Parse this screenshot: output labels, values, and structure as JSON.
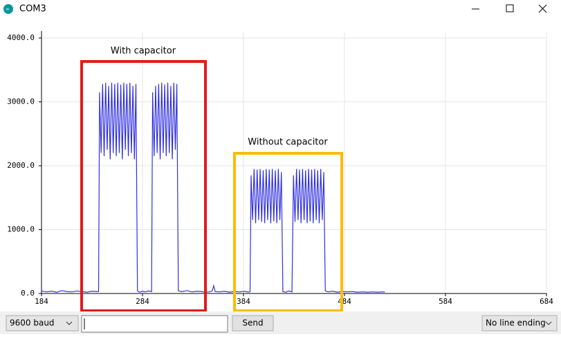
{
  "window": {
    "title": "COM3"
  },
  "chart_data": {
    "type": "line",
    "xlim": [
      184,
      684
    ],
    "xticks": [
      184,
      284,
      384,
      484,
      584,
      684
    ],
    "ylim": [
      0,
      4000
    ],
    "yticks": [
      {
        "value": 0,
        "label": "0.0"
      },
      {
        "value": 1000,
        "label": "1000.0"
      },
      {
        "value": 2000,
        "label": "2000.0"
      },
      {
        "value": 3000,
        "label": "3000.0"
      },
      {
        "value": 4000,
        "label": "4000.0"
      }
    ],
    "grid": true,
    "color": "#2f2fe0",
    "annotations": [
      "With capacitor",
      "Without capacitor"
    ],
    "x": [
      184,
      189,
      194,
      199,
      204,
      209,
      214,
      219,
      224,
      229,
      234,
      239,
      240.5,
      241.5,
      243,
      244.5,
      246,
      247.5,
      249,
      250.5,
      252,
      253.5,
      255,
      256.5,
      258,
      259.5,
      261,
      262.5,
      264,
      265.5,
      267,
      268.5,
      270,
      271.5,
      273,
      274.5,
      276,
      277.5,
      279,
      281,
      284,
      287,
      290,
      293,
      294,
      295.5,
      297,
      298.5,
      300,
      301.5,
      303,
      304.5,
      306,
      307.5,
      309,
      310.5,
      312,
      313.5,
      315,
      316.5,
      318,
      319.5,
      323,
      328,
      333,
      338,
      342,
      346,
      350,
      353,
      354.5,
      356,
      360,
      365,
      370,
      375,
      380,
      385,
      389,
      390.5,
      391.5,
      393,
      394.5,
      396,
      397.5,
      399,
      400.5,
      402,
      403.5,
      405,
      406.5,
      408,
      409.5,
      411,
      412.5,
      414,
      415.5,
      417,
      418.5,
      420,
      421.5,
      423,
      426,
      429,
      432,
      433.5,
      435,
      436.5,
      438,
      439.5,
      441,
      442.5,
      444,
      445.5,
      447,
      448.5,
      450,
      451.5,
      453,
      454.5,
      456,
      457.5,
      459,
      460.5,
      462,
      463.5,
      465,
      468,
      472,
      477,
      482,
      487,
      492,
      497,
      502,
      507,
      512,
      517,
      522,
      524
    ],
    "values": [
      40,
      25,
      35,
      20,
      45,
      30,
      25,
      40,
      30,
      20,
      35,
      30,
      30,
      3150,
      2200,
      3280,
      2150,
      3300,
      2250,
      3250,
      2100,
      3300,
      2200,
      3280,
      2150,
      3300,
      2200,
      3270,
      2100,
      3300,
      2250,
      3280,
      2150,
      3300,
      2200,
      3250,
      2100,
      3280,
      40,
      20,
      35,
      25,
      40,
      30,
      3150,
      2150,
      3250,
      2200,
      3280,
      2100,
      3300,
      2200,
      3270,
      2150,
      3300,
      2200,
      3250,
      2100,
      3300,
      2250,
      3280,
      40,
      30,
      45,
      25,
      35,
      30,
      20,
      25,
      40,
      120,
      30,
      25,
      35,
      20,
      30,
      25,
      35,
      20,
      30,
      1850,
      1150,
      1950,
      1100,
      1940,
      1150,
      1950,
      1120,
      1930,
      1100,
      1950,
      1150,
      1940,
      1100,
      1950,
      1130,
      1930,
      1100,
      1950,
      1150,
      1900,
      30,
      20,
      40,
      25,
      1850,
      1120,
      1950,
      1150,
      1940,
      1100,
      1950,
      1150,
      1930,
      1100,
      1950,
      1130,
      1940,
      1100,
      1950,
      1150,
      1930,
      1100,
      1950,
      1150,
      1900,
      40,
      25,
      35,
      20,
      30,
      25,
      30,
      20,
      25,
      20,
      25,
      20,
      25,
      20
    ]
  },
  "controls": {
    "baud": "9600 baud",
    "send": "Send",
    "line_ending": "No line ending"
  }
}
